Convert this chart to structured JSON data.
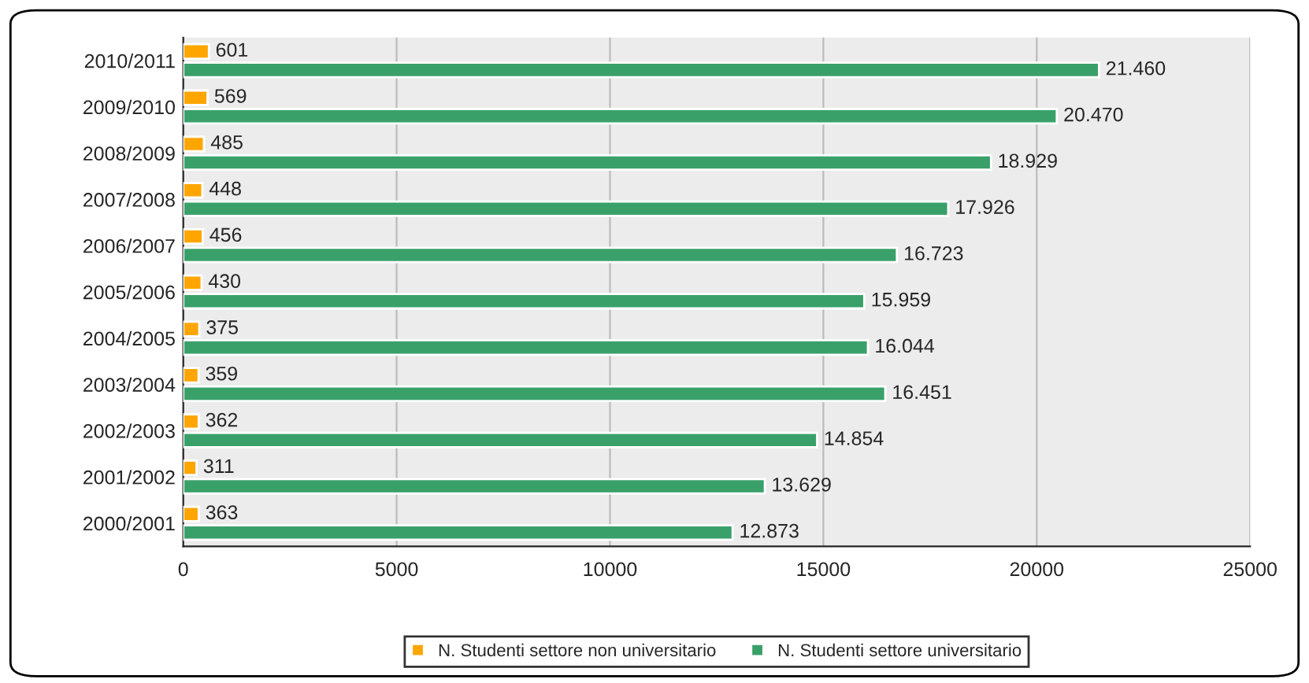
{
  "chart_data": {
    "type": "bar",
    "orientation": "horizontal",
    "categories": [
      "2010/2011",
      "2009/2010",
      "2008/2009",
      "2007/2008",
      "2006/2007",
      "2005/2006",
      "2004/2005",
      "2003/2004",
      "2002/2003",
      "2001/2002",
      "2000/2001"
    ],
    "series": [
      {
        "name": "N. Studenti settore non universitario",
        "color": "#ffa500",
        "values": [
          601,
          569,
          485,
          448,
          456,
          430,
          375,
          359,
          362,
          311,
          363
        ],
        "value_labels": [
          "601",
          "569",
          "485",
          "448",
          "456",
          "430",
          "375",
          "359",
          "362",
          "311",
          "363"
        ]
      },
      {
        "name": "N. Studenti settore universitario",
        "color": "#3aa06a",
        "values": [
          21460,
          20470,
          18929,
          17926,
          16723,
          15959,
          16044,
          16451,
          14854,
          13629,
          12873
        ],
        "value_labels": [
          "21.460",
          "20.470",
          "18.929",
          "17.926",
          "16.723",
          "15.959",
          "16.044",
          "16.451",
          "14.854",
          "13.629",
          "12.873"
        ]
      }
    ],
    "xlim": [
      0,
      25000
    ],
    "xticks": [
      0,
      5000,
      10000,
      15000,
      20000,
      25000
    ],
    "grid": "x",
    "legend": "bottom"
  }
}
